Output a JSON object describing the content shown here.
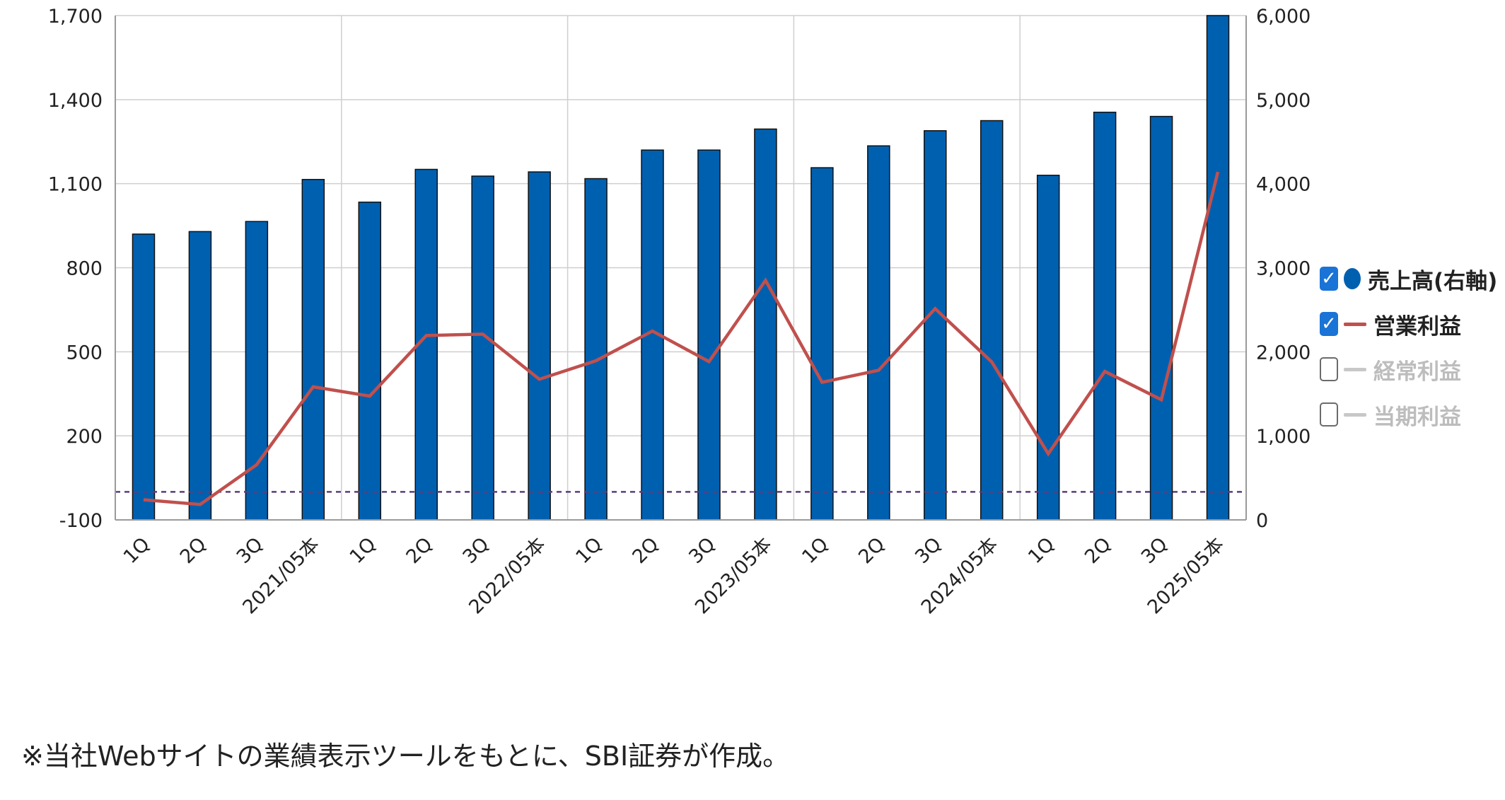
{
  "chart_data": {
    "type": "bar",
    "categories": [
      "1Q",
      "2Q",
      "3Q",
      "2021/05本",
      "1Q",
      "2Q",
      "3Q",
      "2022/05本",
      "1Q",
      "2Q",
      "3Q",
      "2023/05本",
      "1Q",
      "2Q",
      "3Q",
      "2024/05本",
      "1Q",
      "2Q",
      "3Q",
      "2025/05本"
    ],
    "series": [
      {
        "name": "売上高(右軸)",
        "type": "bar",
        "axis": "right",
        "color": "#0060b0",
        "values": [
          3400,
          3430,
          3550,
          4050,
          3780,
          4170,
          4090,
          4140,
          4060,
          4400,
          4400,
          4650,
          4190,
          4450,
          4630,
          4750,
          4100,
          4850,
          4800,
          6000
        ]
      },
      {
        "name": "営業利益",
        "type": "line",
        "axis": "left",
        "color": "#c0504d",
        "values": [
          -28,
          -45,
          97,
          375,
          342,
          558,
          563,
          402,
          468,
          574,
          465,
          755,
          391,
          434,
          654,
          464,
          136,
          430,
          329,
          1142
        ]
      }
    ],
    "left_axis": {
      "ylim": [
        -100,
        1700
      ],
      "ticks": [
        "1,700",
        "1,400",
        "1,100",
        "800",
        "500",
        "200",
        "-100"
      ],
      "tick_values": [
        1700,
        1400,
        1100,
        800,
        500,
        200,
        -100
      ]
    },
    "right_axis": {
      "ylim": [
        0,
        6000
      ],
      "ticks": [
        "6,000",
        "5,000",
        "4,000",
        "3,000",
        "2,000",
        "1,000",
        "0"
      ],
      "tick_values": [
        6000,
        5000,
        4000,
        3000,
        2000,
        1000,
        0
      ]
    },
    "reference_line": {
      "value": 0,
      "axis": "left",
      "color": "#5a3e7a"
    },
    "grid": true,
    "legend_position": "right"
  },
  "legend": {
    "items": [
      {
        "label": "売上高(右軸)",
        "checked": true,
        "marker": "dot",
        "color": "#0060b0"
      },
      {
        "label": "営業利益",
        "checked": true,
        "marker": "line",
        "color": "#c0504d"
      },
      {
        "label": "経常利益",
        "checked": false,
        "marker": "line",
        "color": "#c8c8c8"
      },
      {
        "label": "当期利益",
        "checked": false,
        "marker": "line",
        "color": "#c8c8c8"
      }
    ],
    "check_glyph": "✓"
  },
  "footnote": "※当社Webサイトの業績表示ツールをもとに、SBI証券が作成。"
}
